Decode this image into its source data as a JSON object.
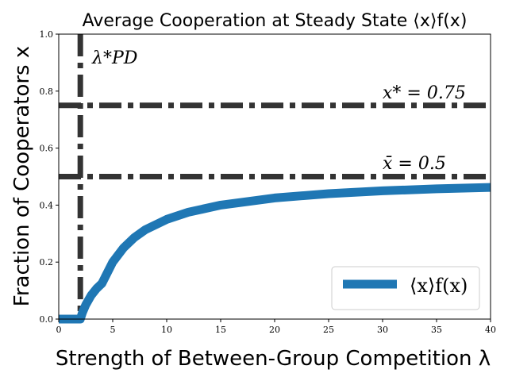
{
  "chart_data": {
    "type": "line",
    "title": "Average Cooperation at Steady State ⟨x⟩f(x)",
    "xlabel": "Strength of Between-Group Competition λ",
    "ylabel": "Fraction of Cooperators x",
    "xlim": [
      0,
      40
    ],
    "ylim": [
      0,
      1
    ],
    "xticks": [
      0,
      5,
      10,
      15,
      20,
      25,
      30,
      35,
      40
    ],
    "yticks": [
      0.0,
      0.2,
      0.4,
      0.6,
      0.8,
      1.0
    ],
    "xtick_labels": [
      "0",
      "5",
      "10",
      "15",
      "20",
      "25",
      "30",
      "35",
      "40"
    ],
    "ytick_labels": [
      "0.0",
      "0.2",
      "0.4",
      "0.6",
      "0.8",
      "1.0"
    ],
    "grid": false,
    "series": [
      {
        "name": "⟨x⟩f(x)",
        "color": "#1f77b4",
        "x": [
          0,
          1,
          2,
          2.2,
          2.5,
          3,
          3.5,
          4,
          5,
          6,
          7,
          8,
          10,
          12,
          15,
          20,
          25,
          30,
          35,
          40
        ],
        "y": [
          0,
          0,
          0,
          0.023,
          0.05,
          0.083,
          0.107,
          0.125,
          0.2,
          0.25,
          0.286,
          0.313,
          0.35,
          0.375,
          0.4,
          0.425,
          0.44,
          0.45,
          0.457,
          0.462
        ]
      }
    ],
    "reference_lines": [
      {
        "orientation": "vertical",
        "value": 2,
        "label": "λ*PD",
        "color": "#333333",
        "style": "dashdot"
      },
      {
        "orientation": "horizontal",
        "value": 0.75,
        "label": "x* = 0.75",
        "color": "#333333",
        "style": "dashdot"
      },
      {
        "orientation": "horizontal",
        "value": 0.5,
        "label": "x̄ = 0.5",
        "color": "#333333",
        "style": "dashdot"
      }
    ],
    "legend": {
      "position": "bottom-right"
    }
  }
}
